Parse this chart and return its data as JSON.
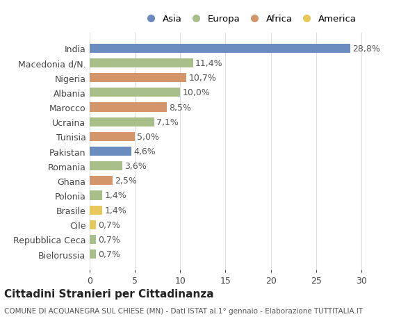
{
  "countries": [
    "India",
    "Macedonia d/N.",
    "Nigeria",
    "Albania",
    "Marocco",
    "Ucraina",
    "Tunisia",
    "Pakistan",
    "Romania",
    "Ghana",
    "Polonia",
    "Brasile",
    "Cile",
    "Repubblica Ceca",
    "Bielorussia"
  ],
  "values": [
    28.8,
    11.4,
    10.7,
    10.0,
    8.5,
    7.1,
    5.0,
    4.6,
    3.6,
    2.5,
    1.4,
    1.4,
    0.7,
    0.7,
    0.7
  ],
  "labels": [
    "28,8%",
    "11,4%",
    "10,7%",
    "10,0%",
    "8,5%",
    "7,1%",
    "5,0%",
    "4,6%",
    "3,6%",
    "2,5%",
    "1,4%",
    "1,4%",
    "0,7%",
    "0,7%",
    "0,7%"
  ],
  "regions": [
    "Asia",
    "Europa",
    "Africa",
    "Europa",
    "Africa",
    "Europa",
    "Africa",
    "Asia",
    "Europa",
    "Africa",
    "Europa",
    "America",
    "America",
    "Europa",
    "Europa"
  ],
  "region_colors": {
    "Asia": "#6b8cbf",
    "Europa": "#a8bf8a",
    "Africa": "#d4956a",
    "America": "#e8c85a"
  },
  "legend_order": [
    "Asia",
    "Europa",
    "Africa",
    "America"
  ],
  "title": "Cittadini Stranieri per Cittadinanza",
  "subtitle": "COMUNE DI ACQUANEGRA SUL CHIESE (MN) - Dati ISTAT al 1° gennaio - Elaborazione TUTTITALIA.IT",
  "xlim": [
    0,
    32
  ],
  "xticks": [
    0,
    5,
    10,
    15,
    20,
    25,
    30
  ],
  "bg_color": "#ffffff",
  "grid_color": "#dddddd",
  "bar_height": 0.62,
  "label_fontsize": 9,
  "tick_label_fontsize": 9,
  "title_fontsize": 11,
  "subtitle_fontsize": 7.5
}
